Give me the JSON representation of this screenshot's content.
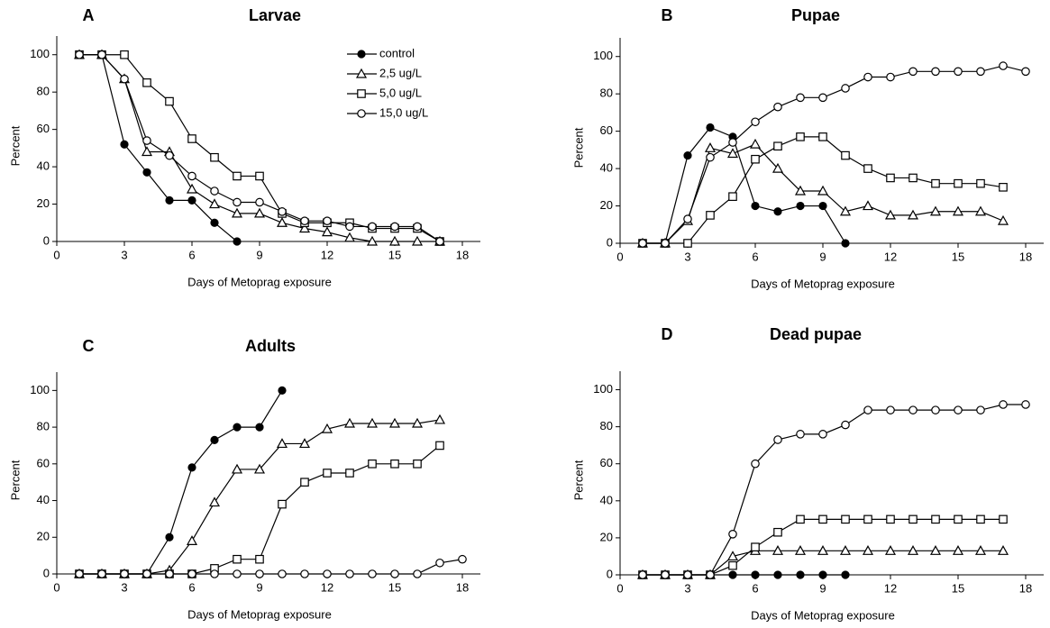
{
  "chart_data": [
    {
      "type": "line",
      "panel": "A",
      "title": "Larvae",
      "x_label": "Days of Metoprag exposure",
      "y_label": "Percent",
      "x": [
        1,
        2,
        3,
        4,
        5,
        6,
        7,
        8,
        9,
        10,
        11,
        12,
        13,
        14,
        15,
        16,
        17,
        18
      ],
      "xlim": [
        0,
        18.8
      ],
      "xticks": [
        0,
        3,
        6,
        9,
        12,
        15,
        18
      ],
      "ylim": [
        0,
        110
      ],
      "yticks": [
        0,
        20,
        40,
        60,
        80,
        100
      ],
      "legend": "upper right",
      "series": [
        {
          "name": "control",
          "color": "#000000",
          "marker": "filled-circle",
          "values": [
            100,
            100,
            52,
            37,
            22,
            22,
            10,
            0,
            null,
            null,
            null,
            null,
            null,
            null,
            null,
            null,
            null,
            null
          ]
        },
        {
          "name": "2,5 ug/L",
          "color": "#000000",
          "marker": "triangle",
          "values": [
            100,
            100,
            87,
            48,
            48,
            28,
            20,
            15,
            15,
            10,
            7,
            5,
            2,
            0,
            0,
            0,
            0,
            null
          ]
        },
        {
          "name": "5,0 ug/L",
          "color": "#000000",
          "marker": "square",
          "values": [
            100,
            100,
            100,
            85,
            75,
            55,
            45,
            35,
            35,
            15,
            10,
            10,
            10,
            7,
            7,
            7,
            0,
            null
          ]
        },
        {
          "name": "15,0 ug/L",
          "color": "#000000",
          "marker": "open-circle",
          "values": [
            100,
            100,
            87,
            54,
            46,
            35,
            27,
            21,
            21,
            16,
            11,
            11,
            8,
            8,
            8,
            8,
            0,
            null
          ]
        }
      ]
    },
    {
      "type": "line",
      "panel": "B",
      "title": "Pupae",
      "x_label": "Days of Metoprag exposure",
      "y_label": "Percent",
      "x": [
        1,
        2,
        3,
        4,
        5,
        6,
        7,
        8,
        9,
        10,
        11,
        12,
        13,
        14,
        15,
        16,
        17,
        18
      ],
      "xlim": [
        0,
        18.8
      ],
      "xticks": [
        0,
        3,
        6,
        9,
        12,
        15,
        18
      ],
      "ylim": [
        0,
        110
      ],
      "yticks": [
        0,
        20,
        40,
        60,
        80,
        100
      ],
      "series": [
        {
          "color": "#000000",
          "marker": "filled-circle",
          "values": [
            0,
            0,
            47,
            62,
            57,
            20,
            17,
            20,
            20,
            0,
            null,
            null,
            null,
            null,
            null,
            null,
            null,
            null
          ]
        },
        {
          "color": "#000000",
          "marker": "triangle",
          "values": [
            0,
            0,
            12,
            51,
            48,
            53,
            40,
            28,
            28,
            17,
            20,
            15,
            15,
            17,
            17,
            17,
            12,
            null
          ]
        },
        {
          "color": "#000000",
          "marker": "square",
          "values": [
            0,
            0,
            0,
            15,
            25,
            45,
            52,
            57,
            57,
            47,
            40,
            35,
            35,
            32,
            32,
            32,
            30,
            null
          ]
        },
        {
          "color": "#000000",
          "marker": "open-circle",
          "values": [
            0,
            0,
            13,
            46,
            54,
            65,
            73,
            78,
            78,
            83,
            89,
            89,
            92,
            92,
            92,
            92,
            95,
            92
          ]
        }
      ]
    },
    {
      "type": "line",
      "panel": "C",
      "title": "Adults",
      "x_label": "Days of Metoprag exposure",
      "y_label": "Percent",
      "x": [
        1,
        2,
        3,
        4,
        5,
        6,
        7,
        8,
        9,
        10,
        11,
        12,
        13,
        14,
        15,
        16,
        17,
        18
      ],
      "xlim": [
        0,
        18.8
      ],
      "xticks": [
        0,
        3,
        6,
        9,
        12,
        15,
        18
      ],
      "ylim": [
        0,
        110
      ],
      "yticks": [
        0,
        20,
        40,
        60,
        80,
        100
      ],
      "series": [
        {
          "color": "#000000",
          "marker": "filled-circle",
          "values": [
            0,
            0,
            0,
            0,
            20,
            58,
            73,
            80,
            80,
            100,
            null,
            null,
            null,
            null,
            null,
            null,
            null,
            null
          ]
        },
        {
          "color": "#000000",
          "marker": "triangle",
          "values": [
            0,
            0,
            0,
            0,
            2,
            18,
            39,
            57,
            57,
            71,
            71,
            79,
            82,
            82,
            82,
            82,
            84,
            null
          ]
        },
        {
          "color": "#000000",
          "marker": "square",
          "values": [
            0,
            0,
            0,
            0,
            0,
            0,
            3,
            8,
            8,
            38,
            50,
            55,
            55,
            60,
            60,
            60,
            70,
            null
          ]
        },
        {
          "color": "#000000",
          "marker": "open-circle",
          "values": [
            0,
            0,
            0,
            0,
            0,
            0,
            0,
            0,
            0,
            0,
            0,
            0,
            0,
            0,
            0,
            0,
            6,
            8
          ]
        }
      ]
    },
    {
      "type": "line",
      "panel": "D",
      "title": "Dead pupae",
      "x_label": "Days of Metoprag exposure",
      "y_label": "Percent",
      "x": [
        1,
        2,
        3,
        4,
        5,
        6,
        7,
        8,
        9,
        10,
        11,
        12,
        13,
        14,
        15,
        16,
        17,
        18
      ],
      "xlim": [
        0,
        18.8
      ],
      "xticks": [
        0,
        3,
        6,
        9,
        12,
        15,
        18
      ],
      "ylim": [
        0,
        110
      ],
      "yticks": [
        0,
        20,
        40,
        60,
        80,
        100
      ],
      "series": [
        {
          "color": "#000000",
          "marker": "filled-circle",
          "values": [
            0,
            0,
            0,
            0,
            0,
            0,
            0,
            0,
            0,
            0,
            null,
            null,
            null,
            null,
            null,
            null,
            null,
            null
          ]
        },
        {
          "color": "#000000",
          "marker": "triangle",
          "values": [
            0,
            0,
            0,
            0,
            10,
            13,
            13,
            13,
            13,
            13,
            13,
            13,
            13,
            13,
            13,
            13,
            13,
            null
          ]
        },
        {
          "color": "#000000",
          "marker": "square",
          "values": [
            0,
            0,
            0,
            0,
            5,
            15,
            23,
            30,
            30,
            30,
            30,
            30,
            30,
            30,
            30,
            30,
            30,
            null
          ]
        },
        {
          "color": "#000000",
          "marker": "open-circle",
          "values": [
            0,
            0,
            0,
            0,
            22,
            60,
            73,
            76,
            76,
            81,
            89,
            89,
            89,
            89,
            89,
            89,
            92,
            92
          ]
        }
      ]
    }
  ]
}
